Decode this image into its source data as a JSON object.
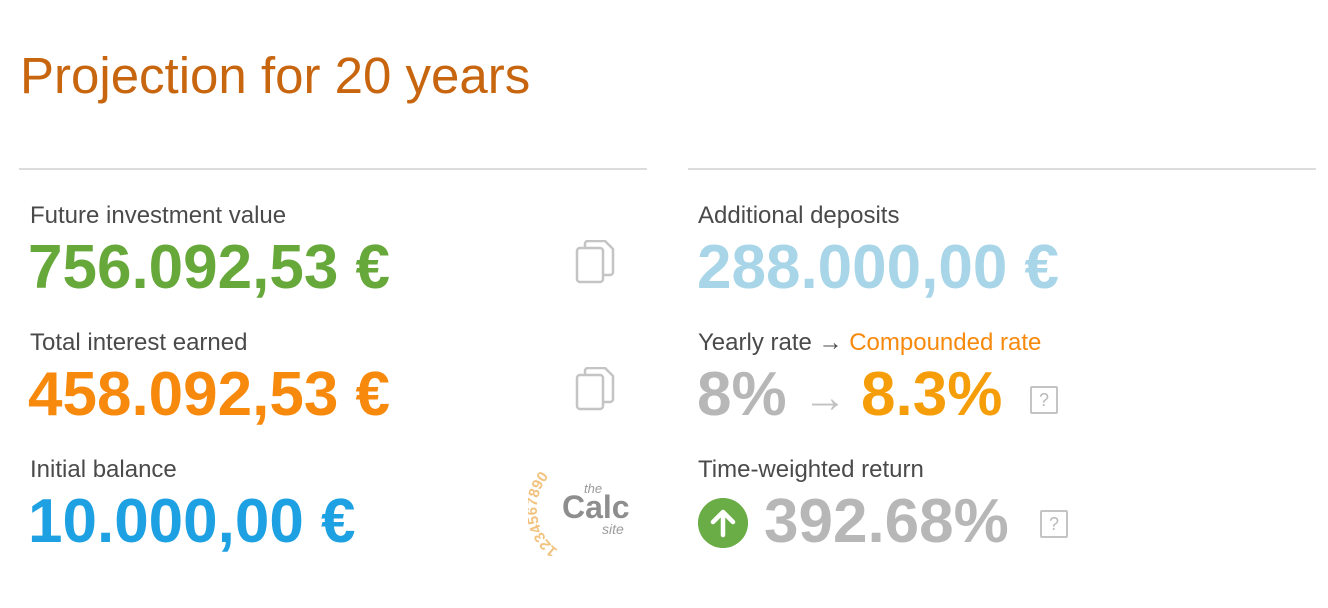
{
  "header": {
    "title": "Projection for 20 years"
  },
  "left": {
    "future_value": {
      "label": "Future investment value",
      "value": "756.092,53 €",
      "color": "#67a83b"
    },
    "interest": {
      "label": "Total interest earned",
      "value": "458.092,53 €",
      "color": "#f7890d"
    },
    "initial": {
      "label": "Initial balance",
      "value": "10.000,00 €",
      "color": "#1ea1e2"
    }
  },
  "right": {
    "deposits": {
      "label": "Additional deposits",
      "value": "288.000,00 €",
      "color": "#a8d6e8"
    },
    "rate": {
      "label_prefix": "Yearly rate",
      "label_arrow": "→",
      "label_suffix": "Compounded rate",
      "yearly": "8%",
      "arrow": "→",
      "compounded": "8.3%",
      "help": "?"
    },
    "twr": {
      "label": "Time-weighted return",
      "value": "392.68%",
      "help": "?",
      "trend_icon": "arrow-up-circle-icon",
      "trend_color": "#6aad47"
    }
  },
  "logo": {
    "top_digits": "1234567890",
    "word_the": "the",
    "word_calc": "Calc",
    "word_site": "site"
  },
  "icons": {
    "copy": "copy-icon",
    "help": "help-icon"
  }
}
